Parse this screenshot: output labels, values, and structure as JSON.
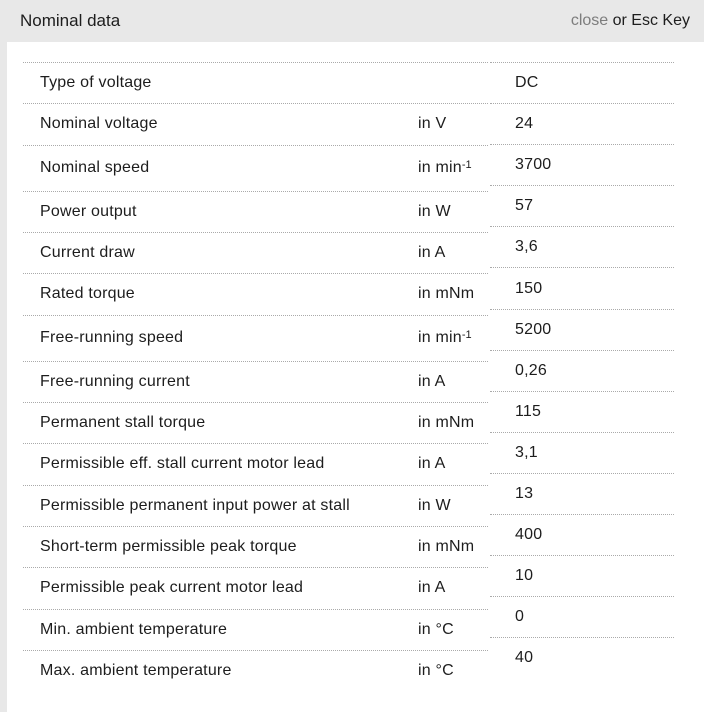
{
  "header": {
    "title": "Nominal data",
    "close_label": "close",
    "close_suffix": " or Esc Key"
  },
  "colors": {
    "header_bg": "#e8e8e8",
    "divider": "#aaaaaa",
    "text": "#1d1d1d",
    "close_link": "#7d7d7d"
  },
  "table": {
    "rows": [
      {
        "label": "Type of voltage",
        "unit": "",
        "value": "DC"
      },
      {
        "label": "Nominal voltage",
        "unit": "in V",
        "value": "24"
      },
      {
        "label": "Nominal speed",
        "unit": "in min",
        "unit_sup": "-1",
        "value": "3700"
      },
      {
        "label": "Power output",
        "unit": "in W",
        "value": "57"
      },
      {
        "label": "Current draw",
        "unit": "in A",
        "value": "3,6"
      },
      {
        "label": "Rated torque",
        "unit": "in mNm",
        "value": "150"
      },
      {
        "label": "Free-running speed",
        "unit": "in min",
        "unit_sup": "-1",
        "value": "5200"
      },
      {
        "label": "Free-running current",
        "unit": "in A",
        "value": "0,26"
      },
      {
        "label": "Permanent stall torque",
        "unit": "in mNm",
        "value": "115"
      },
      {
        "label": "Permissible eff. stall current motor lead",
        "unit": "in A",
        "value": "3,1"
      },
      {
        "label": "Permissible permanent input power at stall",
        "unit": "in W",
        "value": "13"
      },
      {
        "label": "Short-term permissible peak torque",
        "unit": "in mNm",
        "value": "400"
      },
      {
        "label": "Permissible peak current motor lead",
        "unit": "in A",
        "value": "10"
      },
      {
        "label": "Min. ambient temperature",
        "unit": "in °C",
        "value": "0"
      },
      {
        "label": "Max. ambient temperature",
        "unit": "in °C",
        "value": "40"
      }
    ]
  }
}
